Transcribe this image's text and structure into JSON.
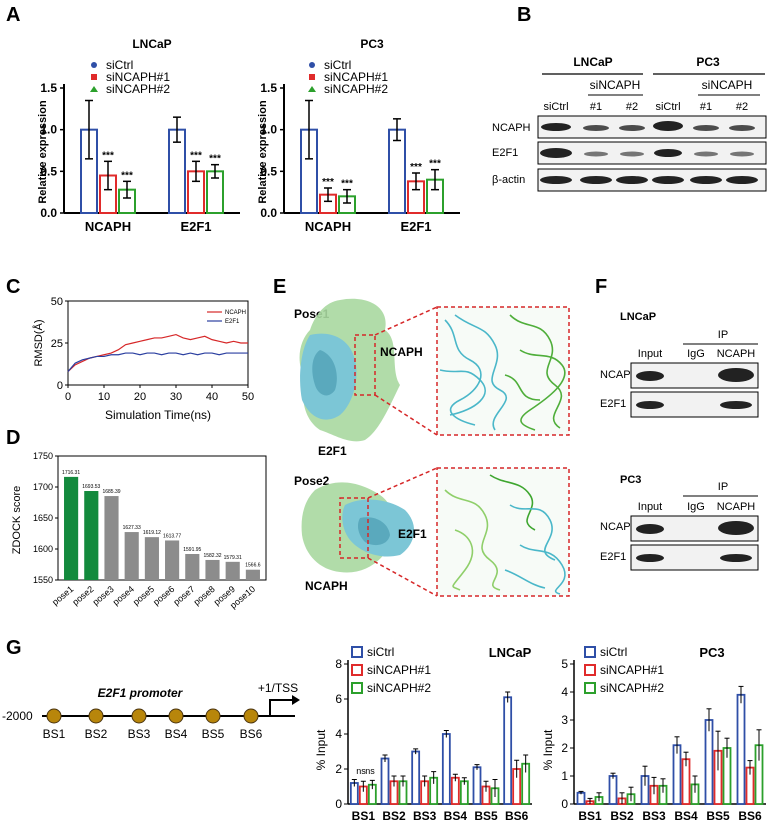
{
  "panels": {
    "A": "A",
    "B": "B",
    "C": "C",
    "D": "D",
    "E": "E",
    "F": "F",
    "G": "G"
  },
  "colors": {
    "siCtrl": "#2f4fa7",
    "siNCAPH1": "#e02b2b",
    "siNCAPH2": "#2ca02c",
    "ncaph_line": "#d62728",
    "e2f1_line": "#2b3fa0",
    "bar_green": "#138a3d",
    "bar_gray": "#8c8c8c"
  },
  "legend": {
    "s1": "siCtrl",
    "s2": "siNCAPH#1",
    "s3": "siNCAPH#2"
  },
  "panelA": {
    "left": {
      "title": "LNCaP",
      "ylabel": "Relative expression",
      "yticks": [
        "0.0",
        "0.5",
        "1.0",
        "1.5"
      ],
      "categories": [
        "NCAPH",
        "E2F1"
      ],
      "sig": "***"
    },
    "right": {
      "title": "PC3",
      "ylabel": "Relative expression",
      "yticks": [
        "0.0",
        "0.5",
        "1.0",
        "1.5"
      ],
      "categories": [
        "NCAPH",
        "E2F1"
      ],
      "sig": "***"
    }
  },
  "panelB": {
    "lncap": "LNCaP",
    "pc3": "PC3",
    "sincaph": "siNCAPH",
    "lanes": [
      "siCtrl",
      "#1",
      "#2",
      "siCtrl",
      "#1",
      "#2"
    ],
    "rows": [
      "NCAPH",
      "E2F1",
      "β-actin"
    ]
  },
  "panelC": {
    "ylabel": "RMSD(Å)",
    "xlabel": "Simulation Time(ns)",
    "yticks": [
      "0",
      "25",
      "50"
    ],
    "xticks": [
      "0",
      "10",
      "20",
      "30",
      "40",
      "50"
    ],
    "legend": [
      "NCAPH",
      "E2F1"
    ]
  },
  "panelD": {
    "ylabel": "ZDOCK score",
    "yticks": [
      "1550",
      "1600",
      "1650",
      "1700",
      "1750"
    ],
    "categories": [
      "pose1",
      "pose2",
      "pose3",
      "pose4",
      "pose5",
      "pose6",
      "pose7",
      "pose8",
      "pose9",
      "pose10"
    ],
    "value_labels": [
      "1716.31",
      "1693.53",
      "1685.39",
      "1627.33",
      "1619.12",
      "1613.77",
      "1591.95",
      "1582.32",
      "1579.31",
      "1566.6"
    ]
  },
  "panelE": {
    "pose1": "Pose1",
    "pose2": "Pose2",
    "ncaph": "NCAPH",
    "e2f1": "E2F1"
  },
  "panelF": {
    "lncap": "LNCaP",
    "pc3": "PC3",
    "ip": "IP",
    "lanes": [
      "Input",
      "IgG",
      "NCAPH"
    ],
    "rows": [
      "NCAPH",
      "E2F1"
    ]
  },
  "panelG": {
    "promoter_label": "E2F1 promoter",
    "tss": "+1/TSS",
    "start": "-2000",
    "sites": [
      "BS1",
      "BS2",
      "BS3",
      "BS4",
      "BS5",
      "BS6"
    ],
    "lncap": {
      "title": "LNCaP",
      "ylabel": "% Input",
      "yticks": [
        "0",
        "2",
        "4",
        "6",
        "8"
      ],
      "categories": [
        "BS1",
        "BS2",
        "BS3",
        "BS4",
        "BS5",
        "BS6"
      ]
    },
    "pc3": {
      "title": "PC3",
      "ylabel": "% Input",
      "yticks": [
        "0",
        "1",
        "2",
        "3",
        "4",
        "5"
      ],
      "categories": [
        "BS1",
        "BS2",
        "BS3",
        "BS4",
        "BS5",
        "BS6"
      ]
    },
    "ns": "ns"
  },
  "chart_data": [
    {
      "type": "bar",
      "title": "LNCaP",
      "ylabel": "Relative expression",
      "ylim": [
        0,
        1.5
      ],
      "categories": [
        "NCAPH",
        "E2F1"
      ],
      "series": [
        {
          "name": "siCtrl",
          "values": [
            1.0,
            1.0
          ],
          "err": [
            0.35,
            0.15
          ]
        },
        {
          "name": "siNCAPH#1",
          "values": [
            0.45,
            0.5
          ],
          "err": [
            0.17,
            0.12
          ]
        },
        {
          "name": "siNCAPH#2",
          "values": [
            0.28,
            0.5
          ],
          "err": [
            0.1,
            0.08
          ]
        }
      ]
    },
    {
      "type": "bar",
      "title": "PC3",
      "ylabel": "Relative expression",
      "ylim": [
        0,
        1.5
      ],
      "categories": [
        "NCAPH",
        "E2F1"
      ],
      "series": [
        {
          "name": "siCtrl",
          "values": [
            1.0,
            1.0
          ],
          "err": [
            0.35,
            0.13
          ]
        },
        {
          "name": "siNCAPH#1",
          "values": [
            0.22,
            0.38
          ],
          "err": [
            0.08,
            0.1
          ]
        },
        {
          "name": "siNCAPH#2",
          "values": [
            0.2,
            0.4
          ],
          "err": [
            0.08,
            0.12
          ]
        }
      ]
    },
    {
      "type": "line",
      "xlabel": "Simulation Time(ns)",
      "ylabel": "RMSD(Å)",
      "xlim": [
        0,
        50
      ],
      "ylim": [
        0,
        50
      ],
      "x": [
        0,
        2,
        4,
        6,
        8,
        10,
        12,
        14,
        16,
        18,
        20,
        22,
        24,
        26,
        28,
        30,
        32,
        34,
        36,
        38,
        40,
        42,
        44,
        46,
        48,
        50
      ],
      "series": [
        {
          "name": "NCAPH",
          "values": [
            8,
            12,
            14,
            16,
            17,
            18,
            19,
            21,
            24,
            25,
            26,
            27,
            28,
            28,
            29,
            30,
            28,
            27,
            28,
            29,
            27,
            26,
            25,
            26,
            25,
            25
          ]
        },
        {
          "name": "E2F1",
          "values": [
            8,
            13,
            15,
            16,
            17,
            17,
            18,
            18,
            19,
            19,
            18,
            19,
            19,
            18,
            19,
            19,
            18,
            19,
            18,
            19,
            19,
            18,
            19,
            19,
            19,
            19
          ]
        }
      ]
    },
    {
      "type": "bar",
      "ylabel": "ZDOCK score",
      "ylim": [
        1550,
        1750
      ],
      "categories": [
        "pose1",
        "pose2",
        "pose3",
        "pose4",
        "pose5",
        "pose6",
        "pose7",
        "pose8",
        "pose9",
        "pose10"
      ],
      "values": [
        1716.31,
        1693.53,
        1685.39,
        1627.33,
        1619.12,
        1613.77,
        1591.95,
        1582.32,
        1579.31,
        1566.6
      ]
    },
    {
      "type": "bar",
      "title": "LNCaP",
      "ylabel": "% Input",
      "ylim": [
        0,
        8
      ],
      "categories": [
        "BS1",
        "BS2",
        "BS3",
        "BS4",
        "BS5",
        "BS6"
      ],
      "series": [
        {
          "name": "siCtrl",
          "values": [
            1.2,
            2.6,
            3.0,
            4.0,
            2.1,
            6.1
          ],
          "err": [
            0.2,
            0.2,
            0.15,
            0.2,
            0.15,
            0.3
          ]
        },
        {
          "name": "siNCAPH#1",
          "values": [
            1.0,
            1.3,
            1.3,
            1.5,
            1.0,
            2.0
          ],
          "err": [
            0.3,
            0.3,
            0.3,
            0.2,
            0.3,
            0.5
          ]
        },
        {
          "name": "siNCAPH#2",
          "values": [
            1.1,
            1.3,
            1.5,
            1.3,
            0.9,
            2.3
          ],
          "err": [
            0.25,
            0.3,
            0.35,
            0.2,
            0.5,
            0.5
          ]
        }
      ]
    },
    {
      "type": "bar",
      "title": "PC3",
      "ylabel": "% Input",
      "ylim": [
        0,
        5
      ],
      "categories": [
        "BS1",
        "BS2",
        "BS3",
        "BS4",
        "BS5",
        "BS6"
      ],
      "series": [
        {
          "name": "siCtrl",
          "values": [
            0.4,
            1.0,
            1.0,
            2.1,
            3.0,
            3.9
          ],
          "err": [
            0.05,
            0.1,
            0.35,
            0.3,
            0.4,
            0.3
          ]
        },
        {
          "name": "siNCAPH#1",
          "values": [
            0.1,
            0.2,
            0.65,
            1.6,
            1.9,
            1.3
          ],
          "err": [
            0.1,
            0.2,
            0.3,
            0.25,
            0.7,
            0.25
          ]
        },
        {
          "name": "siNCAPH#2",
          "values": [
            0.25,
            0.35,
            0.65,
            0.7,
            2.0,
            2.1
          ],
          "err": [
            0.15,
            0.25,
            0.25,
            0.3,
            0.35,
            0.55
          ]
        }
      ]
    }
  ]
}
